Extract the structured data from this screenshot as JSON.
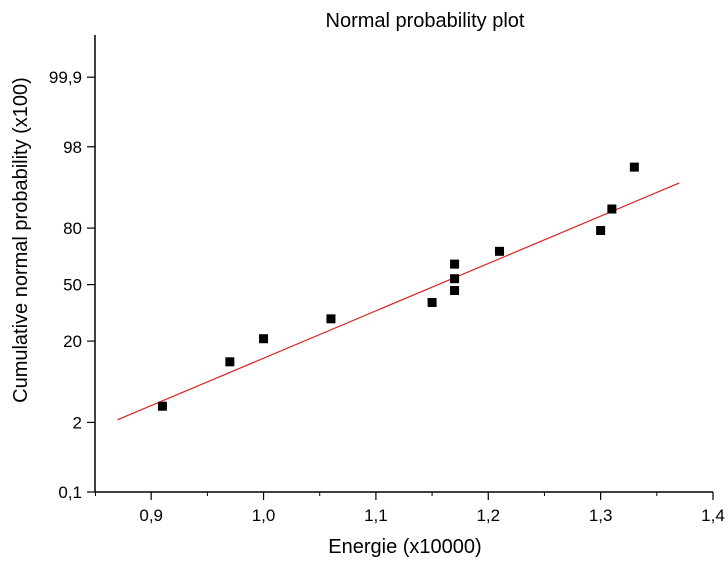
{
  "chart_data": {
    "type": "scatter",
    "title": "Normal probability plot",
    "xlabel": "Energie (x10000)",
    "ylabel": "Cumulative normal probability (x100)",
    "xlim": [
      0.85,
      1.4
    ],
    "x_ticks": [
      0.9,
      1.0,
      1.1,
      1.2,
      1.3,
      1.4
    ],
    "x_tick_labels": [
      "0,9",
      "1,0",
      "1,1",
      "1,2",
      "1,3",
      "1,4"
    ],
    "y_scale": "normal-probability",
    "ylim": [
      0.1,
      99.99
    ],
    "y_ticks": [
      0.1,
      2,
      20,
      50,
      80,
      98,
      99.9
    ],
    "y_tick_labels": [
      "0,1",
      "2",
      "20",
      "50",
      "80",
      "98",
      "99,9"
    ],
    "points": [
      {
        "x": 0.91,
        "y": 3.5
      },
      {
        "x": 0.97,
        "y": 12.5
      },
      {
        "x": 1.0,
        "y": 21
      },
      {
        "x": 1.06,
        "y": 30.5
      },
      {
        "x": 1.15,
        "y": 39.5
      },
      {
        "x": 1.17,
        "y": 46.5
      },
      {
        "x": 1.17,
        "y": 53.5
      },
      {
        "x": 1.17,
        "y": 62
      },
      {
        "x": 1.21,
        "y": 69
      },
      {
        "x": 1.3,
        "y": 79
      },
      {
        "x": 1.31,
        "y": 87
      },
      {
        "x": 1.33,
        "y": 96
      }
    ],
    "fit_line": {
      "x": [
        0.87,
        1.37
      ],
      "y": [
        2.2,
        93.5
      ],
      "color": "#e02020"
    },
    "marker_color": "#000000",
    "grid": false
  }
}
